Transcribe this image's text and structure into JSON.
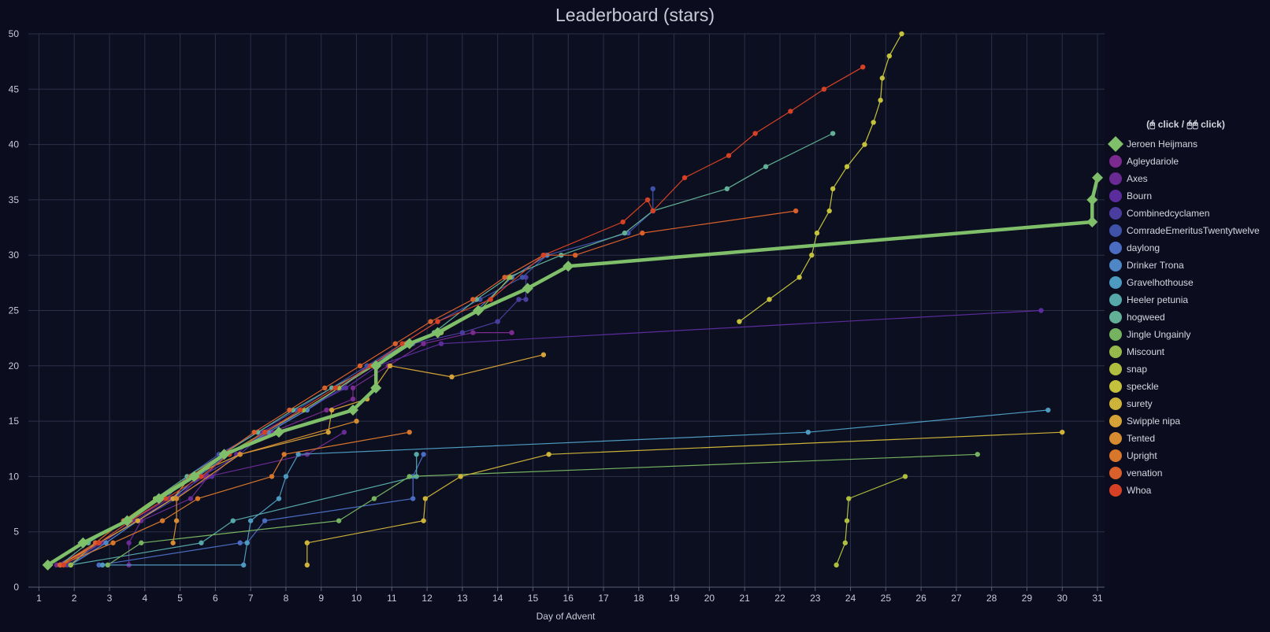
{
  "chart_data": {
    "type": "line",
    "title": "Leaderboard (stars)",
    "xlabel": "Day of Advent",
    "ylabel": "",
    "xlim": [
      0.7,
      31.2
    ],
    "ylim": [
      0,
      50
    ],
    "xticks": [
      1,
      2,
      3,
      4,
      5,
      6,
      7,
      8,
      9,
      10,
      11,
      12,
      13,
      14,
      15,
      16,
      17,
      18,
      19,
      20,
      21,
      22,
      23,
      24,
      25,
      26,
      27,
      28,
      29,
      30,
      31
    ],
    "yticks": [
      0,
      5,
      10,
      15,
      20,
      25,
      30,
      35,
      40,
      45,
      50
    ],
    "grid": true,
    "legend": {
      "title": "(🖰 click / 🖰🖰 click)",
      "placement": "right"
    },
    "series": [
      {
        "name": "Jeroen Heijmans",
        "color": "#7fbf6a",
        "highlight": true,
        "points": [
          [
            1.25,
            2
          ],
          [
            2.25,
            4
          ],
          [
            3.5,
            6
          ],
          [
            4.4,
            8
          ],
          [
            5.4,
            10
          ],
          [
            6.25,
            12
          ],
          [
            7.8,
            14
          ],
          [
            9.9,
            16
          ],
          [
            10.55,
            18
          ],
          [
            10.55,
            20
          ],
          [
            11.5,
            22
          ],
          [
            12.3,
            23
          ],
          [
            13.45,
            25
          ],
          [
            14.85,
            27
          ],
          [
            16.0,
            29
          ],
          [
            30.85,
            33
          ],
          [
            30.85,
            35
          ],
          [
            31.0,
            37
          ]
        ]
      },
      {
        "name": "Agleydariole",
        "color": "#7b2a8f",
        "points": [
          [
            1.5,
            2
          ],
          [
            2.7,
            4
          ],
          [
            3.6,
            6
          ],
          [
            4.7,
            8
          ],
          [
            5.7,
            10
          ],
          [
            6.3,
            12
          ],
          [
            7.6,
            14
          ],
          [
            9.15,
            16
          ],
          [
            9.9,
            17
          ],
          [
            9.9,
            18
          ],
          [
            10.9,
            20
          ],
          [
            11.9,
            22
          ],
          [
            13.3,
            23
          ],
          [
            14.4,
            23
          ]
        ]
      },
      {
        "name": "Axes",
        "color": "#6a2a93",
        "points": [
          [
            3.55,
            2
          ],
          [
            3.55,
            4
          ],
          [
            3.9,
            6
          ],
          [
            5.3,
            8
          ],
          [
            5.8,
            10
          ],
          [
            8.6,
            12
          ],
          [
            9.65,
            14
          ]
        ]
      },
      {
        "name": "Bourn",
        "color": "#5b2c9c",
        "points": [
          [
            1.7,
            2
          ],
          [
            2.8,
            4
          ],
          [
            3.7,
            6
          ],
          [
            4.8,
            8
          ],
          [
            5.9,
            10
          ],
          [
            6.6,
            12
          ],
          [
            7.3,
            14
          ],
          [
            8.5,
            16
          ],
          [
            9.7,
            18
          ],
          [
            10.6,
            20
          ],
          [
            12.4,
            22
          ],
          [
            29.4,
            25
          ]
        ]
      },
      {
        "name": "Combinedcyclamen",
        "color": "#4b3d9e",
        "points": [
          [
            1.8,
            2
          ],
          [
            2.9,
            4
          ],
          [
            3.8,
            6
          ],
          [
            4.9,
            8
          ],
          [
            5.6,
            10
          ],
          [
            6.7,
            12
          ],
          [
            7.4,
            14
          ],
          [
            8.6,
            16
          ],
          [
            9.6,
            18
          ],
          [
            10.3,
            20
          ],
          [
            11.6,
            22
          ],
          [
            13.0,
            23
          ],
          [
            14.0,
            24
          ],
          [
            14.6,
            26
          ],
          [
            14.8,
            26
          ],
          [
            14.8,
            28
          ]
        ]
      },
      {
        "name": "ComradeEmeritusTwentytwelve",
        "color": "#3f52a8",
        "points": [
          [
            1.9,
            2
          ],
          [
            2.7,
            4
          ],
          [
            3.6,
            6
          ],
          [
            4.6,
            8
          ],
          [
            5.2,
            10
          ],
          [
            6.1,
            12
          ],
          [
            7.2,
            14
          ],
          [
            8.3,
            16
          ],
          [
            9.3,
            18
          ],
          [
            10.3,
            20
          ],
          [
            11.3,
            22
          ],
          [
            12.3,
            24
          ],
          [
            13.5,
            26
          ],
          [
            14.7,
            28
          ],
          [
            15.4,
            30
          ],
          [
            17.7,
            32
          ],
          [
            18.4,
            34
          ],
          [
            18.4,
            36
          ]
        ]
      },
      {
        "name": "daylong",
        "color": "#4a6cc2",
        "points": [
          [
            2.7,
            2
          ],
          [
            6.7,
            4
          ],
          [
            6.9,
            4
          ],
          [
            7.4,
            6
          ],
          [
            11.6,
            8
          ],
          [
            11.6,
            10
          ],
          [
            11.9,
            12
          ]
        ]
      },
      {
        "name": "Drinker Trona",
        "color": "#4f86c6",
        "points": [
          [
            1.9,
            2
          ],
          [
            2.9,
            4
          ],
          [
            3.8,
            6
          ],
          [
            4.8,
            8
          ],
          [
            5.5,
            10
          ],
          [
            6.4,
            12
          ],
          [
            7.5,
            14
          ],
          [
            8.6,
            16
          ],
          [
            9.5,
            18
          ],
          [
            10.4,
            20
          ],
          [
            11.4,
            22
          ],
          [
            12.4,
            23
          ],
          [
            13.4,
            25
          ],
          [
            14.4,
            28
          ],
          [
            15.4,
            30
          ]
        ]
      },
      {
        "name": "Gravelhothouse",
        "color": "#4d9ac0",
        "points": [
          [
            2.8,
            2
          ],
          [
            6.8,
            2
          ],
          [
            6.9,
            4
          ],
          [
            7.0,
            6
          ],
          [
            7.8,
            8
          ],
          [
            8.0,
            10
          ],
          [
            8.35,
            12
          ],
          [
            22.8,
            14
          ],
          [
            29.6,
            16
          ]
        ]
      },
      {
        "name": "Heeler petunia",
        "color": "#56a8a8",
        "points": [
          [
            1.9,
            2
          ],
          [
            5.6,
            4
          ],
          [
            6.5,
            6
          ],
          [
            11.7,
            10
          ],
          [
            11.7,
            12
          ]
        ]
      },
      {
        "name": "hogweed",
        "color": "#62b096",
        "points": [
          [
            1.6,
            2
          ],
          [
            2.4,
            4
          ],
          [
            3.4,
            6
          ],
          [
            4.3,
            8
          ],
          [
            5.2,
            10
          ],
          [
            6.2,
            12
          ],
          [
            7.2,
            14
          ],
          [
            8.2,
            16
          ],
          [
            9.3,
            18
          ],
          [
            10.5,
            20
          ],
          [
            11.4,
            22
          ],
          [
            12.2,
            23
          ],
          [
            13.4,
            26
          ],
          [
            14.3,
            28
          ],
          [
            15.8,
            30
          ],
          [
            17.6,
            32
          ],
          [
            18.4,
            34
          ],
          [
            20.5,
            36
          ],
          [
            21.6,
            38
          ],
          [
            23.5,
            41
          ]
        ]
      },
      {
        "name": "Jingle Ungainly",
        "color": "#76b360",
        "points": [
          [
            2.95,
            2
          ],
          [
            3.9,
            4
          ],
          [
            9.5,
            6
          ],
          [
            10.5,
            8
          ],
          [
            11.5,
            10
          ],
          [
            27.6,
            12
          ]
        ]
      },
      {
        "name": "Miscount",
        "color": "#97b84a",
        "points": [
          [
            1.9,
            2
          ],
          [
            2.6,
            4
          ],
          [
            3.4,
            6
          ],
          [
            4.3,
            8
          ],
          [
            5.3,
            10
          ],
          [
            6.3,
            12
          ],
          [
            7.4,
            14
          ],
          [
            8.5,
            16
          ],
          [
            9.5,
            18
          ],
          [
            10.5,
            20
          ],
          [
            11.4,
            22
          ],
          [
            12.4,
            23
          ],
          [
            13.5,
            25
          ],
          [
            14.35,
            28
          ]
        ]
      },
      {
        "name": "snap",
        "color": "#afbe3f",
        "points": [
          [
            23.6,
            2
          ],
          [
            23.85,
            4
          ],
          [
            23.9,
            6
          ],
          [
            23.95,
            8
          ],
          [
            25.55,
            10
          ]
        ]
      },
      {
        "name": "speckle",
        "color": "#c4c23c",
        "points": [
          [
            20.85,
            24
          ],
          [
            21.7,
            26
          ],
          [
            22.55,
            28
          ],
          [
            22.9,
            30
          ],
          [
            23.05,
            32
          ],
          [
            23.4,
            34
          ],
          [
            23.5,
            36
          ],
          [
            23.9,
            38
          ],
          [
            24.4,
            40
          ],
          [
            24.65,
            42
          ],
          [
            24.85,
            44
          ],
          [
            24.9,
            46
          ],
          [
            25.1,
            48
          ],
          [
            25.45,
            50
          ]
        ]
      },
      {
        "name": "surety",
        "color": "#cdb33a",
        "points": [
          [
            8.6,
            2
          ],
          [
            8.6,
            4
          ],
          [
            11.9,
            6
          ],
          [
            11.95,
            8
          ],
          [
            12.95,
            10
          ],
          [
            15.45,
            12
          ],
          [
            30.0,
            14
          ]
        ]
      },
      {
        "name": "Swipple nipa",
        "color": "#d4a236",
        "points": [
          [
            1.6,
            2
          ],
          [
            2.7,
            4
          ],
          [
            3.8,
            6
          ],
          [
            4.8,
            8
          ],
          [
            5.3,
            10
          ],
          [
            6.7,
            12
          ],
          [
            9.2,
            14
          ],
          [
            9.3,
            16
          ],
          [
            10.3,
            17
          ],
          [
            10.95,
            20
          ],
          [
            12.7,
            19
          ],
          [
            15.3,
            21
          ]
        ]
      },
      {
        "name": "Tented",
        "color": "#d68b30",
        "points": [
          [
            4.8,
            4
          ],
          [
            4.9,
            6
          ],
          [
            4.9,
            8
          ],
          [
            6.7,
            12
          ],
          [
            10.0,
            15
          ]
        ]
      },
      {
        "name": "Upright",
        "color": "#d8762c",
        "points": [
          [
            1.6,
            2
          ],
          [
            3.1,
            4
          ],
          [
            4.5,
            6
          ],
          [
            5.5,
            8
          ],
          [
            7.6,
            10
          ],
          [
            7.95,
            12
          ],
          [
            11.5,
            14
          ]
        ]
      },
      {
        "name": "venation",
        "color": "#d9602a",
        "points": [
          [
            1.6,
            2
          ],
          [
            2.6,
            4
          ],
          [
            3.4,
            6
          ],
          [
            4.4,
            8
          ],
          [
            5.3,
            10
          ],
          [
            6.2,
            12
          ],
          [
            7.1,
            14
          ],
          [
            8.1,
            16
          ],
          [
            9.1,
            18
          ],
          [
            10.1,
            20
          ],
          [
            11.1,
            22
          ],
          [
            12.1,
            24
          ],
          [
            13.3,
            26
          ],
          [
            14.2,
            28
          ],
          [
            15.3,
            30
          ],
          [
            16.2,
            30
          ],
          [
            18.1,
            32
          ],
          [
            22.45,
            34
          ]
        ]
      },
      {
        "name": "Whoa",
        "color": "#d64125",
        "points": [
          [
            1.7,
            2
          ],
          [
            2.7,
            4
          ],
          [
            3.6,
            6
          ],
          [
            4.6,
            8
          ],
          [
            5.6,
            10
          ],
          [
            6.4,
            12
          ],
          [
            7.4,
            14
          ],
          [
            8.4,
            16
          ],
          [
            9.4,
            18
          ],
          [
            10.4,
            20
          ],
          [
            11.3,
            22
          ],
          [
            12.3,
            24
          ],
          [
            13.8,
            26
          ],
          [
            15.3,
            30
          ],
          [
            17.55,
            33
          ],
          [
            18.25,
            35
          ],
          [
            18.4,
            34
          ],
          [
            19.3,
            37
          ],
          [
            20.55,
            39
          ],
          [
            21.3,
            41
          ],
          [
            22.3,
            43
          ],
          [
            23.25,
            45
          ],
          [
            24.35,
            47
          ]
        ]
      }
    ]
  }
}
